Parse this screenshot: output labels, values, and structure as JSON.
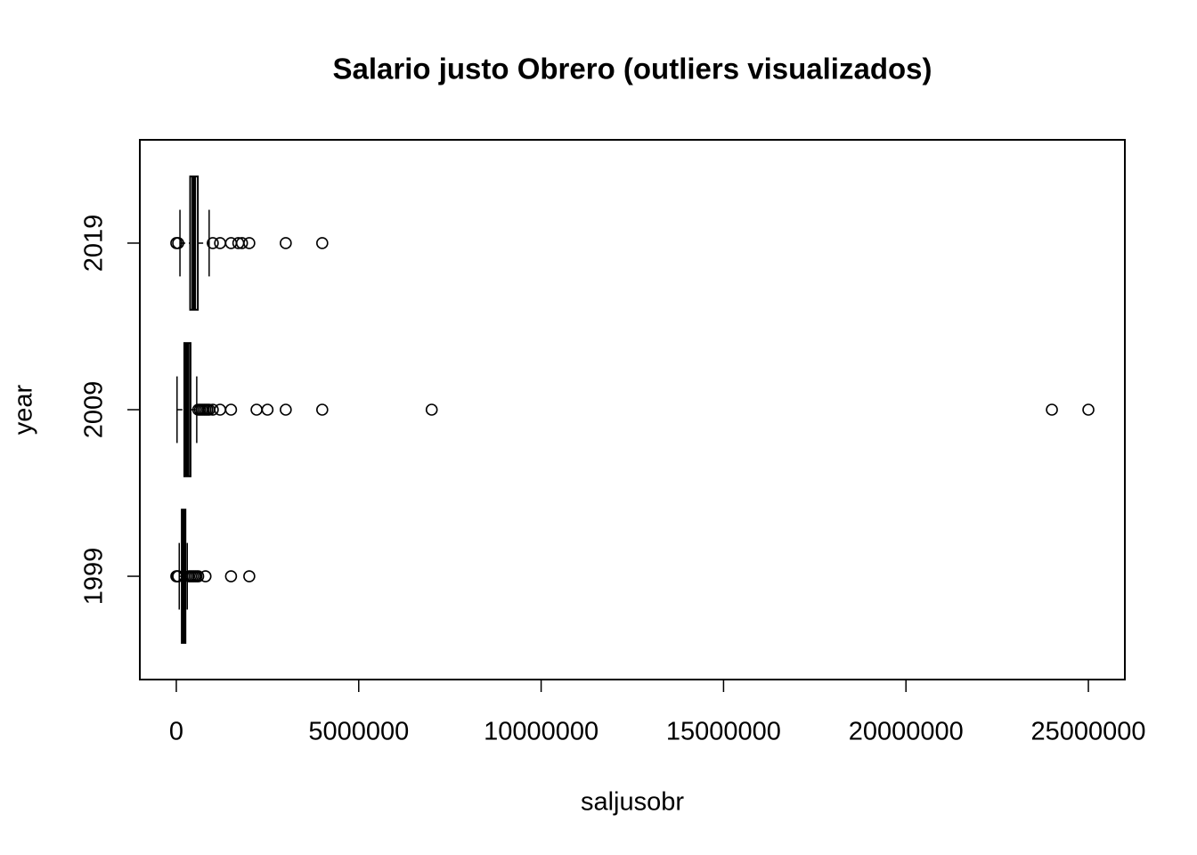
{
  "chart_data": {
    "type": "boxplot",
    "orientation": "horizontal",
    "title": "Salario justo Obrero (outliers visualizados)",
    "x_label": "saljusobr",
    "y_label": "year",
    "categories": [
      "1999",
      "2009",
      "2019"
    ],
    "boxes": [
      {
        "min": 80000,
        "q1": 150000,
        "median": 200000,
        "q3": 250000,
        "max": 300000,
        "outliers": [
          0,
          20000,
          50000,
          350000,
          400000,
          450000,
          500000,
          550000,
          600000,
          800000,
          1500000,
          2000000
        ]
      },
      {
        "min": 20000,
        "q1": 220000,
        "median": 300000,
        "q3": 390000,
        "max": 560000,
        "outliers": [
          600000,
          650000,
          700000,
          750000,
          800000,
          850000,
          900000,
          1000000,
          1200000,
          1500000,
          2200000,
          2500000,
          3000000,
          4000000,
          7000000,
          24000000,
          25000000
        ]
      },
      {
        "min": 100000,
        "q1": 380000,
        "median": 480000,
        "q3": 590000,
        "max": 900000,
        "outliers": [
          0,
          50000,
          1000000,
          1200000,
          1500000,
          1700000,
          1800000,
          2000000,
          3000000,
          4000000
        ]
      }
    ],
    "color": "#000000",
    "xlim": [
      -1000000,
      26000000
    ],
    "xticks": [
      0,
      5000000,
      10000000,
      15000000,
      20000000,
      25000000
    ]
  }
}
